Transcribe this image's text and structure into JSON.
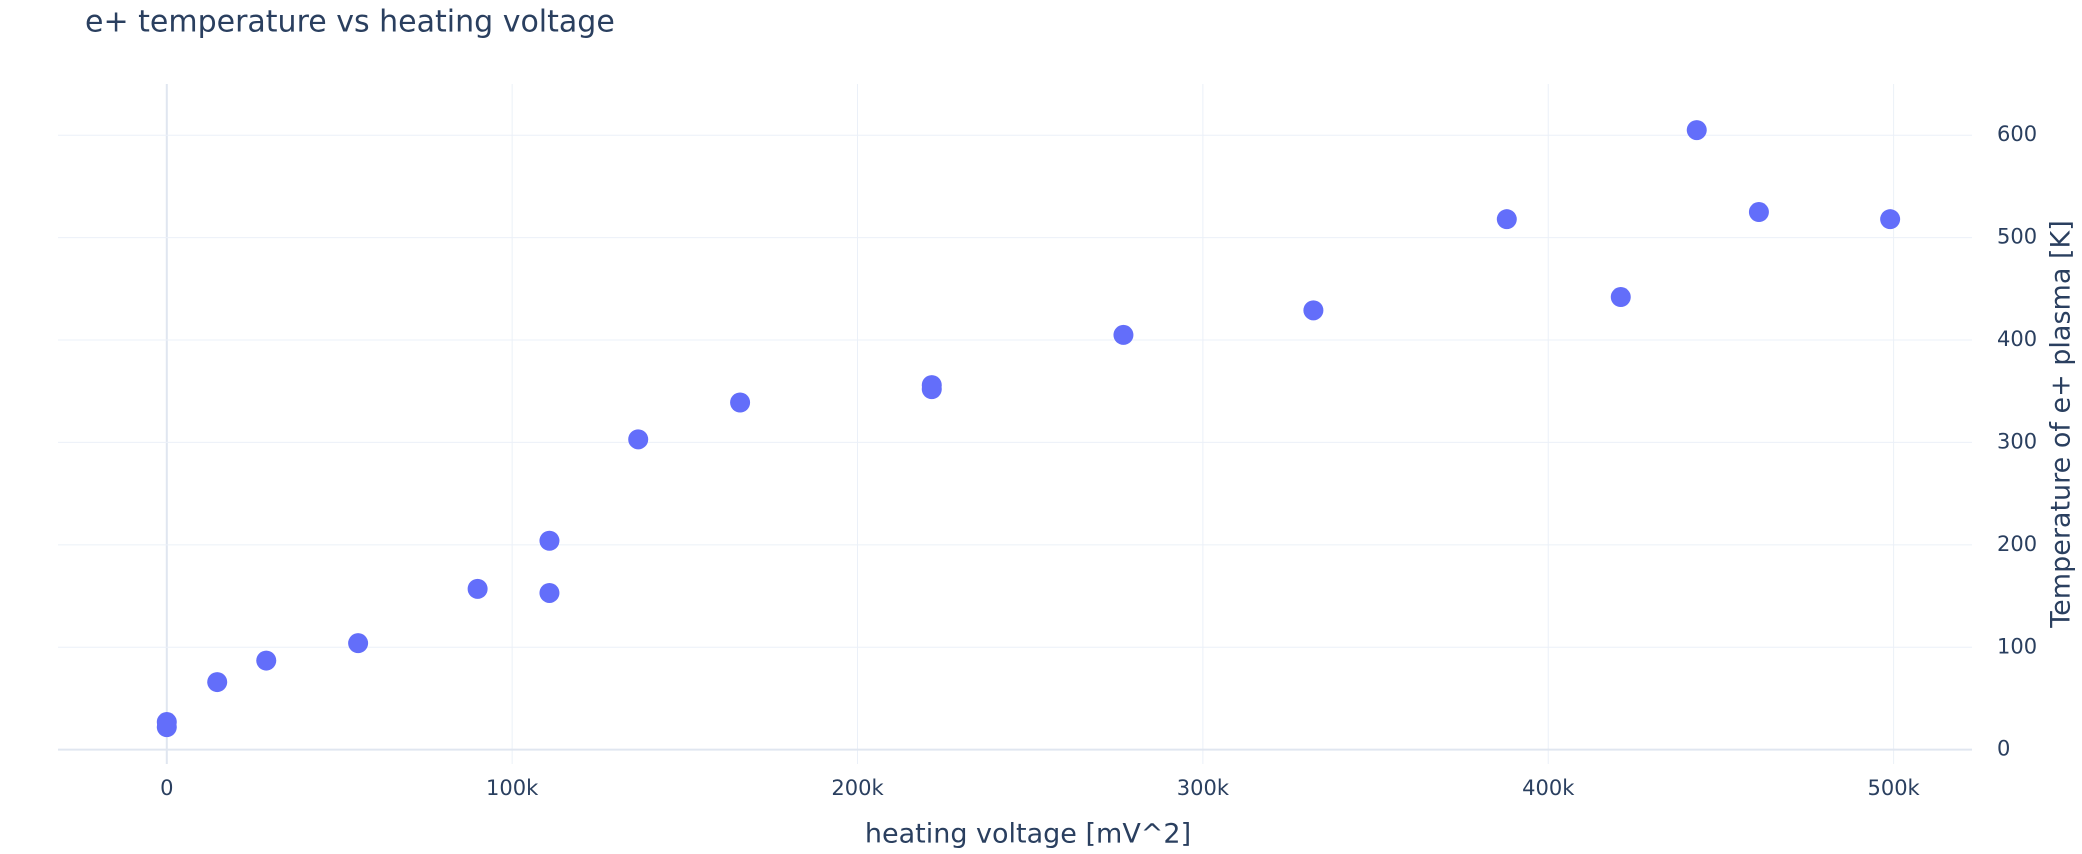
{
  "chart_data": {
    "type": "scatter",
    "title": "e+ temperature vs heating voltage",
    "x_label": "heating voltage [mV^2]",
    "y_label": "Temperature of e+ plasma [K]",
    "series": [
      {
        "name": "e+",
        "color": "#636efa",
        "x": [
          0,
          0,
          14600,
          28800,
          55400,
          90000,
          110800,
          110800,
          136500,
          166000,
          221500,
          221500,
          277000,
          332000,
          388000,
          421000,
          443000,
          461000,
          499000
        ],
        "values": [
          27,
          22,
          66,
          87,
          104,
          157,
          204,
          153,
          303,
          339,
          356,
          352,
          405,
          429,
          518,
          442,
          605,
          525,
          518
        ]
      }
    ],
    "xlim": [
      -31500,
      522700
    ],
    "ylim": [
      -14,
      650
    ],
    "xticks": [
      0,
      {
        "value": 100000,
        "label": "100k"
      },
      {
        "value": 200000,
        "label": "200k"
      },
      {
        "value": 300000,
        "label": "300k"
      },
      {
        "value": 400000,
        "label": "400k"
      },
      {
        "value": 500000,
        "label": "500k"
      }
    ],
    "yticks": [
      0,
      100,
      200,
      300,
      400,
      500,
      600
    ],
    "grid": true
  }
}
